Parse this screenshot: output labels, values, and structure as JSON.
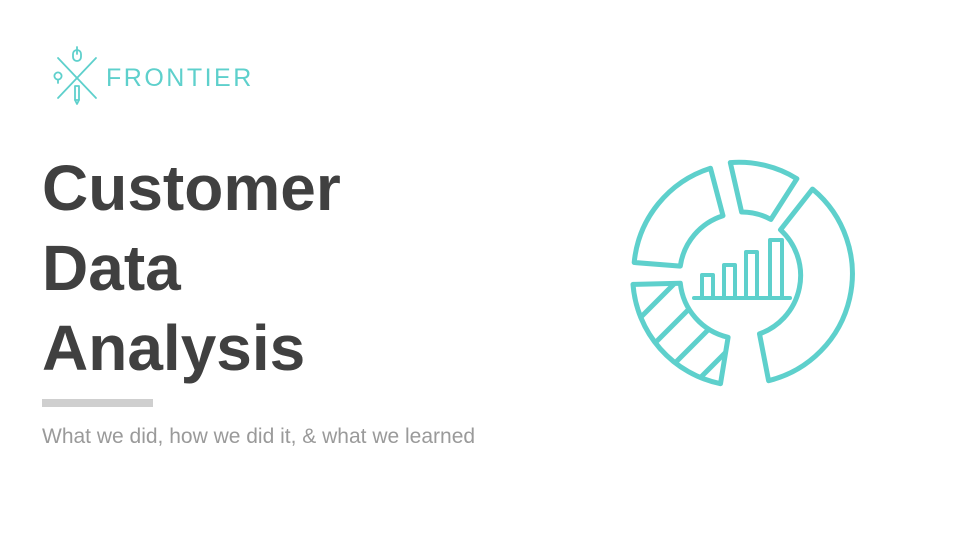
{
  "brand": {
    "name": "FRONTIER",
    "accent_color": "#5ed0cc"
  },
  "title": {
    "lines": [
      "Customer",
      "Data",
      "Analysis"
    ],
    "color": "#404040"
  },
  "subtitle": "What we did, how we did it, & what we learned",
  "illustration": {
    "icon": "donut-chart-with-bar-chart-icon"
  }
}
